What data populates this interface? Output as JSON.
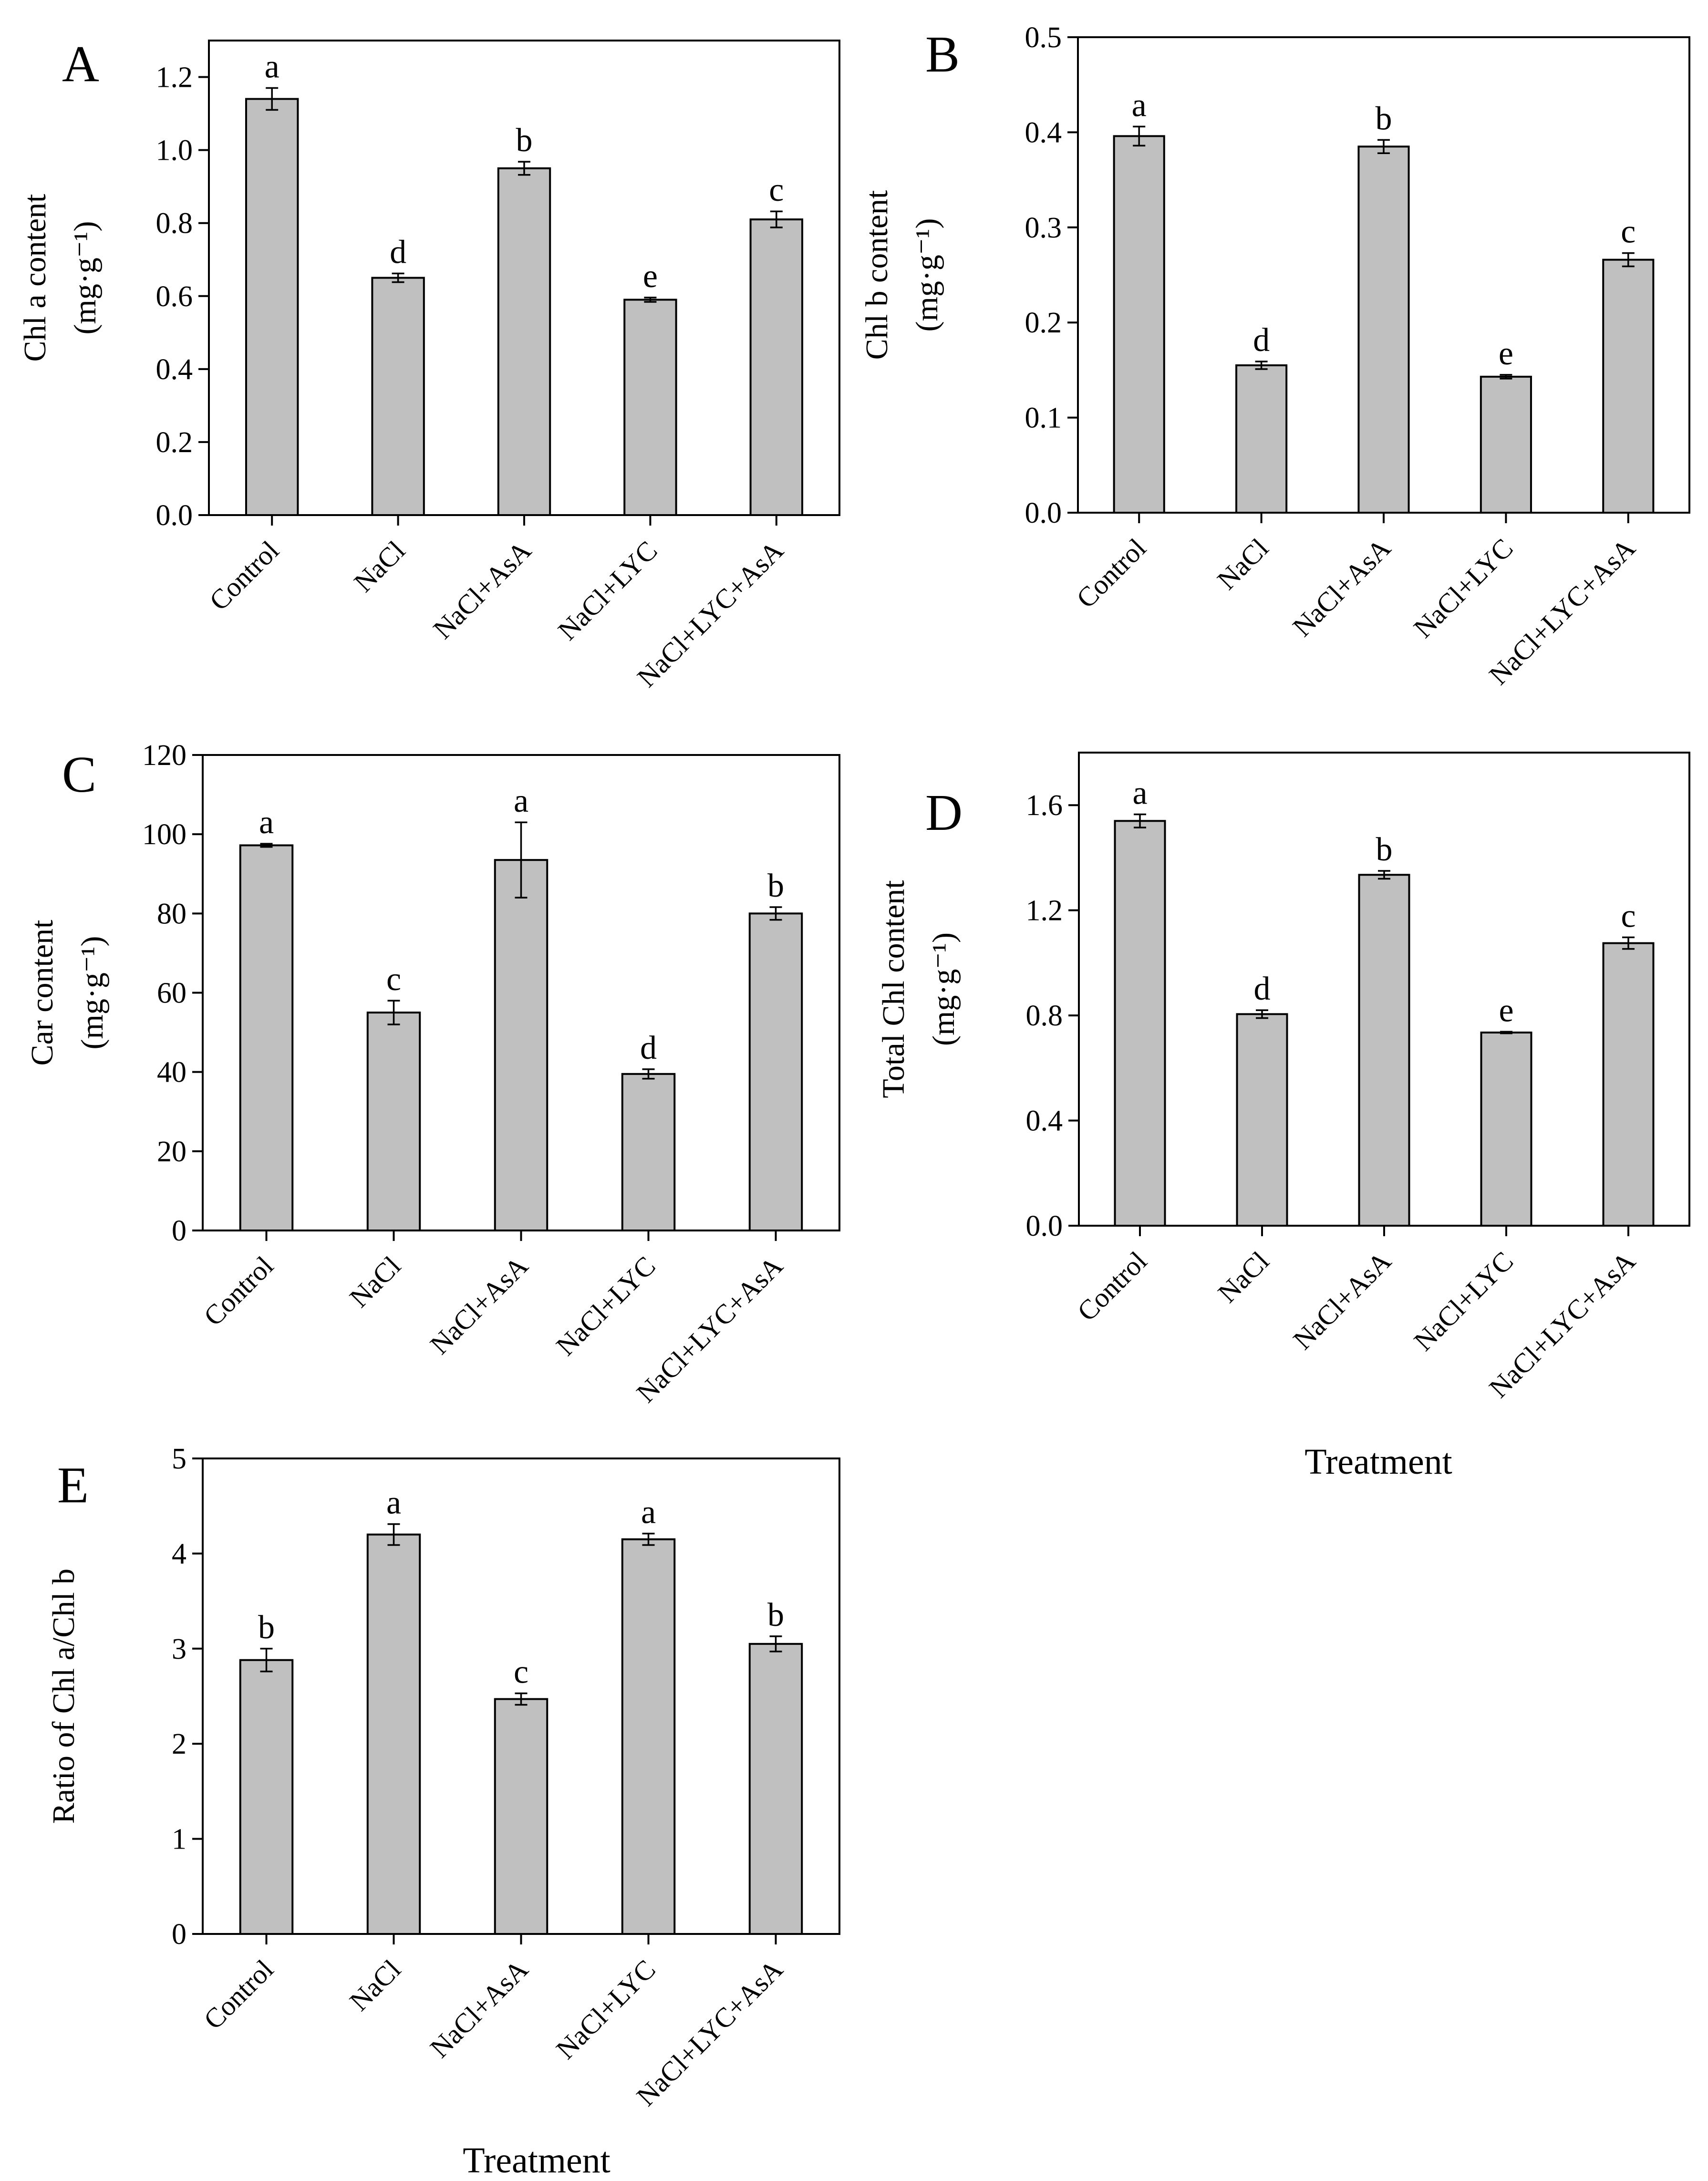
{
  "figure": {
    "x_title": "Treatment",
    "unit_label": "(mg·g⁻¹)"
  },
  "chart_data": [
    {
      "type": "bar",
      "panel": "A",
      "categories": [
        "Control",
        "NaCl",
        "NaCl+AsA",
        "NaCl+LYC",
        "NaCl+LYC+AsA"
      ],
      "values": [
        1.14,
        0.65,
        0.95,
        0.59,
        0.81
      ],
      "errors": [
        0.03,
        0.012,
        0.018,
        0.006,
        0.022
      ],
      "significance": [
        "a",
        "d",
        "b",
        "e",
        "c"
      ],
      "ylabel": "Chl a content",
      "yunit": "(mg·g⁻¹)",
      "ylim": [
        0,
        1.3
      ],
      "yticks": [
        "0.0",
        "0.2",
        "0.4",
        "0.6",
        "0.8",
        "1.0",
        "1.2"
      ],
      "xlabel": ""
    },
    {
      "type": "bar",
      "panel": "B",
      "categories": [
        "Control",
        "NaCl",
        "NaCl+AsA",
        "NaCl+LYC",
        "NaCl+LYC+AsA"
      ],
      "values": [
        0.396,
        0.155,
        0.385,
        0.143,
        0.266
      ],
      "errors": [
        0.01,
        0.004,
        0.007,
        0.002,
        0.007
      ],
      "significance": [
        "a",
        "d",
        "b",
        "e",
        "c"
      ],
      "ylabel": "Chl b content",
      "yunit": "(mg·g⁻¹)",
      "ylim": [
        0,
        0.5
      ],
      "yticks": [
        "0.0",
        "0.1",
        "0.2",
        "0.3",
        "0.4",
        "0.5"
      ],
      "xlabel": ""
    },
    {
      "type": "bar",
      "panel": "C",
      "categories": [
        "Control",
        "NaCl",
        "NaCl+AsA",
        "NaCl+LYC",
        "NaCl+LYC+AsA"
      ],
      "values": [
        97.2,
        55,
        93.5,
        39.5,
        80
      ],
      "errors": [
        0.4,
        3,
        9.5,
        1.2,
        1.6
      ],
      "significance": [
        "a",
        "c",
        "a",
        "d",
        "b"
      ],
      "ylabel": "Car content",
      "yunit": "(mg·g⁻¹)",
      "ylim": [
        0,
        120
      ],
      "yticks": [
        "0",
        "20",
        "40",
        "60",
        "80",
        "100",
        "120"
      ],
      "xlabel": ""
    },
    {
      "type": "bar",
      "panel": "D",
      "categories": [
        "Control",
        "NaCl",
        "NaCl+AsA",
        "NaCl+LYC",
        "NaCl+LYC+AsA"
      ],
      "values": [
        1.54,
        0.805,
        1.335,
        0.735,
        1.075
      ],
      "errors": [
        0.025,
        0.015,
        0.015,
        0.003,
        0.022
      ],
      "significance": [
        "a",
        "d",
        "b",
        "e",
        "c"
      ],
      "ylabel": "Total Chl content",
      "yunit": "(mg·g⁻¹)",
      "ylim": [
        0,
        1.8
      ],
      "yticks": [
        "0.0",
        "0.4",
        "0.8",
        "1.2",
        "1.6"
      ],
      "xlabel": "Treatment"
    },
    {
      "type": "bar",
      "panel": "E",
      "categories": [
        "Control",
        "NaCl",
        "NaCl+AsA",
        "NaCl+LYC",
        "NaCl+LYC+AsA"
      ],
      "values": [
        2.88,
        4.2,
        2.47,
        4.15,
        3.05
      ],
      "errors": [
        0.12,
        0.11,
        0.06,
        0.06,
        0.08
      ],
      "significance": [
        "b",
        "a",
        "c",
        "a",
        "b"
      ],
      "ylabel": "Ratio of Chl a/Chl b",
      "yunit": "",
      "ylim": [
        0,
        5
      ],
      "yticks": [
        "0",
        "1",
        "2",
        "3",
        "4",
        "5"
      ],
      "xlabel": "Treatment"
    }
  ]
}
